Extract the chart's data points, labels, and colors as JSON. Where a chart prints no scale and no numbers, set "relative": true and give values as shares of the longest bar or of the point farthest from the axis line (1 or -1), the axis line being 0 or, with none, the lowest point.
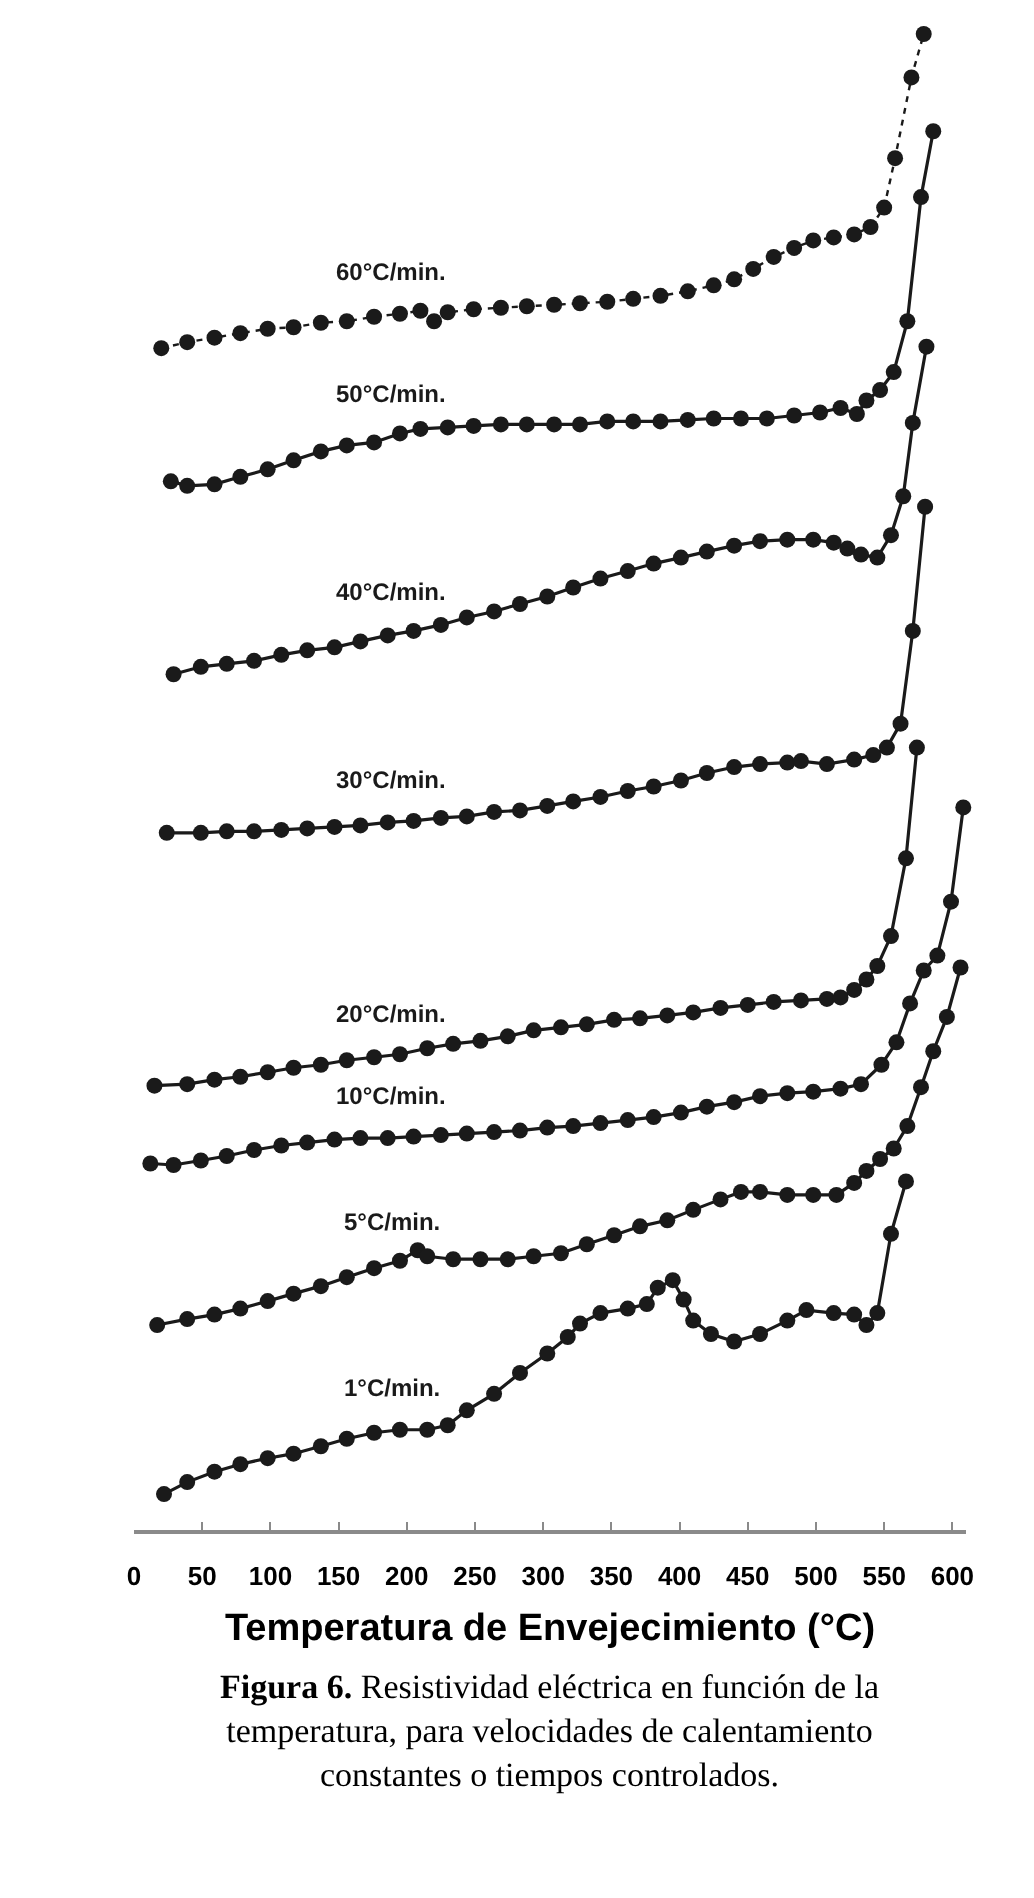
{
  "chart_data": {
    "type": "line",
    "relative": true,
    "marker": "circle",
    "line_style": "solid",
    "xlabel": "Temperatura de Envejecimiento (°C)",
    "xlim": [
      0,
      610
    ],
    "xticks": [
      0,
      50,
      100,
      150,
      200,
      250,
      300,
      350,
      400,
      450,
      500,
      550,
      600
    ],
    "annotations": [
      "Figura 6. Resistividad eléctrica en función de la temperatura, para velocidades de calentamiento constantes o tiempos controlados."
    ],
    "series": [
      {
        "name": "60°C/min.",
        "color": "#1a1a1a",
        "line_style": "dotted",
        "x": [
          20,
          39,
          59,
          78,
          98,
          117,
          137,
          156,
          176,
          195,
          210,
          220,
          230,
          249,
          269,
          288,
          308,
          327,
          347,
          366,
          386,
          406,
          425,
          440,
          454,
          469,
          484,
          498,
          513,
          528,
          540,
          550,
          558,
          570,
          579
        ],
        "values": [
          0.79,
          0.794,
          0.797,
          0.8,
          0.803,
          0.804,
          0.807,
          0.808,
          0.811,
          0.813,
          0.815,
          0.808,
          0.814,
          0.816,
          0.817,
          0.818,
          0.819,
          0.82,
          0.821,
          0.823,
          0.825,
          0.828,
          0.832,
          0.836,
          0.843,
          0.851,
          0.857,
          0.862,
          0.864,
          0.866,
          0.871,
          0.884,
          0.917,
          0.971,
          1.0
        ]
      },
      {
        "name": "50°C/min.",
        "color": "#1a1a1a",
        "x": [
          27,
          39,
          59,
          78,
          98,
          117,
          137,
          156,
          176,
          195,
          210,
          230,
          249,
          269,
          288,
          308,
          327,
          347,
          366,
          386,
          406,
          425,
          445,
          464,
          484,
          503,
          518,
          530,
          537,
          547,
          557,
          567,
          577,
          586
        ],
        "values": [
          0.701,
          0.698,
          0.699,
          0.704,
          0.709,
          0.715,
          0.721,
          0.725,
          0.727,
          0.733,
          0.736,
          0.737,
          0.738,
          0.739,
          0.739,
          0.739,
          0.739,
          0.741,
          0.741,
          0.741,
          0.742,
          0.743,
          0.743,
          0.743,
          0.745,
          0.747,
          0.75,
          0.746,
          0.755,
          0.762,
          0.774,
          0.808,
          0.891,
          0.935
        ]
      },
      {
        "name": "40°C/min.",
        "color": "#1a1a1a",
        "x": [
          29,
          49,
          68,
          88,
          108,
          127,
          147,
          166,
          186,
          205,
          225,
          244,
          264,
          283,
          303,
          322,
          342,
          362,
          381,
          401,
          420,
          440,
          459,
          479,
          498,
          513,
          523,
          533,
          545,
          555,
          564,
          571,
          581
        ],
        "values": [
          0.572,
          0.577,
          0.579,
          0.581,
          0.585,
          0.588,
          0.59,
          0.594,
          0.598,
          0.601,
          0.605,
          0.61,
          0.614,
          0.619,
          0.624,
          0.63,
          0.636,
          0.641,
          0.646,
          0.65,
          0.654,
          0.658,
          0.661,
          0.662,
          0.662,
          0.66,
          0.656,
          0.652,
          0.65,
          0.665,
          0.691,
          0.74,
          0.791
        ]
      },
      {
        "name": "30°C/min.",
        "color": "#1a1a1a",
        "x": [
          24,
          49,
          68,
          88,
          108,
          127,
          147,
          166,
          186,
          205,
          225,
          244,
          264,
          283,
          303,
          322,
          342,
          362,
          381,
          401,
          420,
          440,
          459,
          479,
          489,
          508,
          528,
          542,
          552,
          562,
          571,
          580
        ],
        "values": [
          0.466,
          0.466,
          0.467,
          0.467,
          0.468,
          0.469,
          0.47,
          0.471,
          0.473,
          0.474,
          0.476,
          0.477,
          0.48,
          0.481,
          0.484,
          0.487,
          0.49,
          0.494,
          0.497,
          0.501,
          0.506,
          0.51,
          0.512,
          0.513,
          0.514,
          0.512,
          0.515,
          0.518,
          0.523,
          0.539,
          0.601,
          0.684
        ]
      },
      {
        "name": "20°C/min.",
        "color": "#1a1a1a",
        "x": [
          15,
          39,
          59,
          78,
          98,
          117,
          137,
          156,
          176,
          195,
          215,
          234,
          254,
          274,
          293,
          313,
          332,
          352,
          371,
          391,
          410,
          430,
          450,
          469,
          489,
          508,
          518,
          528,
          537,
          545,
          555,
          566,
          574
        ],
        "values": [
          0.297,
          0.298,
          0.301,
          0.303,
          0.306,
          0.309,
          0.311,
          0.314,
          0.316,
          0.318,
          0.322,
          0.325,
          0.327,
          0.33,
          0.334,
          0.336,
          0.338,
          0.341,
          0.342,
          0.344,
          0.346,
          0.349,
          0.351,
          0.353,
          0.354,
          0.355,
          0.356,
          0.361,
          0.368,
          0.377,
          0.397,
          0.449,
          0.523
        ]
      },
      {
        "name": "10°C/min.",
        "color": "#1a1a1a",
        "x": [
          12,
          29,
          49,
          68,
          88,
          108,
          127,
          147,
          166,
          186,
          205,
          225,
          244,
          264,
          283,
          303,
          322,
          342,
          362,
          381,
          401,
          420,
          440,
          459,
          479,
          498,
          518,
          533,
          548,
          559,
          569,
          579,
          589,
          599,
          608
        ],
        "values": [
          0.245,
          0.244,
          0.247,
          0.25,
          0.254,
          0.257,
          0.259,
          0.261,
          0.262,
          0.262,
          0.263,
          0.264,
          0.265,
          0.266,
          0.267,
          0.269,
          0.27,
          0.272,
          0.274,
          0.276,
          0.279,
          0.283,
          0.286,
          0.29,
          0.292,
          0.293,
          0.295,
          0.298,
          0.311,
          0.326,
          0.352,
          0.374,
          0.384,
          0.42,
          0.483
        ]
      },
      {
        "name": "5°C/min.",
        "color": "#1a1a1a",
        "x": [
          17,
          39,
          59,
          78,
          98,
          117,
          137,
          156,
          176,
          195,
          208,
          215,
          234,
          254,
          274,
          293,
          313,
          332,
          352,
          371,
          391,
          410,
          430,
          445,
          459,
          479,
          498,
          515,
          528,
          537,
          547,
          557,
          567,
          577,
          586,
          596,
          606
        ],
        "values": [
          0.137,
          0.141,
          0.144,
          0.148,
          0.153,
          0.158,
          0.163,
          0.169,
          0.175,
          0.18,
          0.187,
          0.183,
          0.181,
          0.181,
          0.181,
          0.183,
          0.185,
          0.191,
          0.197,
          0.203,
          0.207,
          0.214,
          0.221,
          0.226,
          0.226,
          0.224,
          0.224,
          0.224,
          0.232,
          0.24,
          0.248,
          0.255,
          0.27,
          0.296,
          0.32,
          0.343,
          0.376
        ]
      },
      {
        "name": "1°C/min.",
        "color": "#1a1a1a",
        "x": [
          22,
          39,
          59,
          78,
          98,
          117,
          137,
          156,
          176,
          195,
          215,
          230,
          244,
          264,
          283,
          303,
          318,
          327,
          342,
          362,
          376,
          384,
          395,
          403,
          410,
          423,
          440,
          459,
          479,
          493,
          513,
          528,
          537,
          545,
          555,
          566
        ],
        "values": [
          0.024,
          0.032,
          0.039,
          0.044,
          0.048,
          0.051,
          0.056,
          0.061,
          0.065,
          0.067,
          0.067,
          0.07,
          0.08,
          0.091,
          0.105,
          0.118,
          0.129,
          0.138,
          0.145,
          0.148,
          0.151,
          0.162,
          0.167,
          0.154,
          0.14,
          0.131,
          0.126,
          0.131,
          0.14,
          0.147,
          0.145,
          0.144,
          0.137,
          0.145,
          0.198,
          0.233
        ]
      }
    ]
  }
}
